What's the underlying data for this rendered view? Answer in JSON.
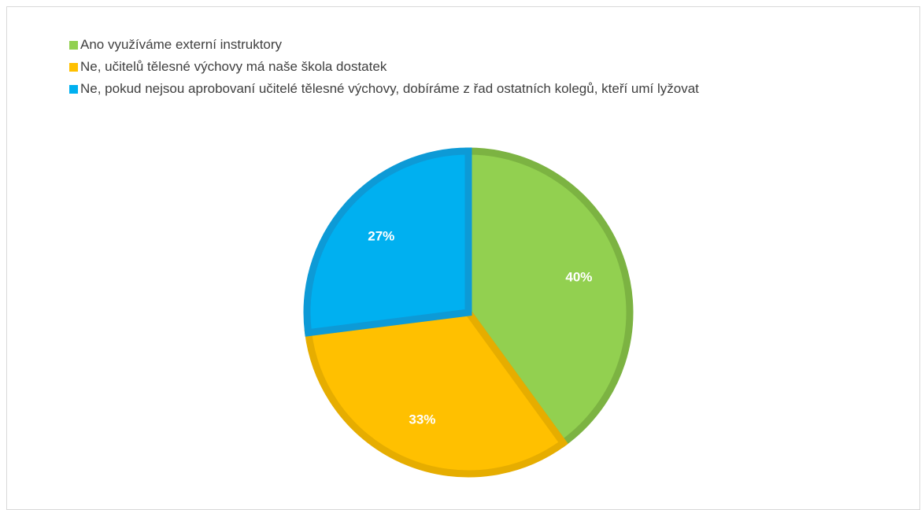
{
  "chart_data": {
    "type": "pie",
    "categories": [
      "Ano využíváme externí instruktory",
      "Ne, učitelů tělesné výchovy má naše škola dostatek",
      "Ne, pokud nejsou aprobovaní učitelé tělesné výchovy, dobíráme z řad ostatních kolegů, kteří umí lyžovat"
    ],
    "values": [
      40,
      33,
      27
    ],
    "data_labels": [
      "40%",
      "33%",
      "27%"
    ],
    "colors": [
      "#92d050",
      "#ffc000",
      "#00b0f0"
    ],
    "edge_colors": [
      "#7cb342",
      "#e6ad00",
      "#0d9ad6"
    ],
    "legend_position": "top-left",
    "title": ""
  }
}
